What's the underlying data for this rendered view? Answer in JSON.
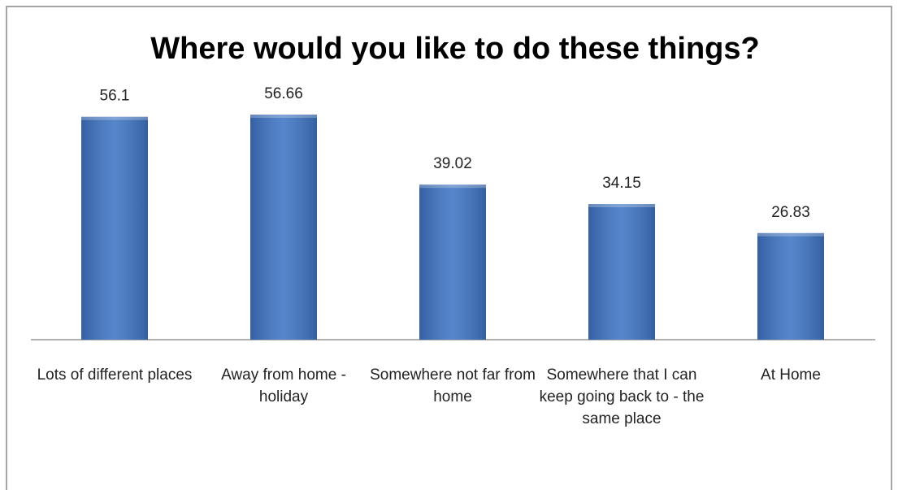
{
  "chart_data": {
    "type": "bar",
    "title": "Where would you like to do these things?",
    "categories": [
      "Lots of different places",
      "Away from home - holiday",
      "Somewhere not far from home",
      "Somewhere that I can keep going back to - the same place",
      "At Home"
    ],
    "values": [
      56.1,
      56.66,
      39.02,
      34.15,
      26.83
    ],
    "color": "#3f75c4"
  }
}
